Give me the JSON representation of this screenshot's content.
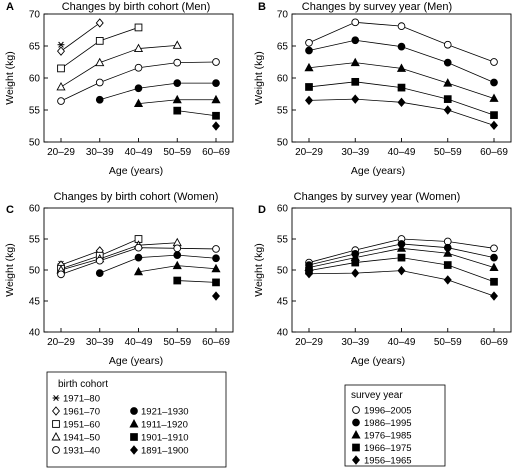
{
  "x_ticks": [
    "20–29",
    "30–39",
    "40–49",
    "50–59",
    "60–69"
  ],
  "chart_data": [
    {
      "panel": "A",
      "type": "line",
      "title": "Changes by birth cohort (Men)",
      "xlabel": "Age (years)",
      "ylabel": "Weight (kg)",
      "categories": [
        "20–29",
        "30–39",
        "40–49",
        "50–59",
        "60–69"
      ],
      "ylim": [
        50,
        70
      ],
      "yticks": [
        50,
        55,
        60,
        65,
        70
      ],
      "connect_lines": true,
      "series": [
        {
          "name": "1971–80",
          "marker": "asterisk",
          "values": [
            65.2,
            null,
            null,
            null,
            null
          ]
        },
        {
          "name": "1961–70",
          "marker": "diamond-open",
          "values": [
            64.2,
            68.6,
            null,
            null,
            null
          ]
        },
        {
          "name": "1951–60",
          "marker": "square-open",
          "values": [
            61.5,
            65.8,
            67.9,
            null,
            null
          ]
        },
        {
          "name": "1941–50",
          "marker": "triangle-open",
          "values": [
            58.6,
            62.4,
            64.6,
            65.1,
            null
          ]
        },
        {
          "name": "1931–40",
          "marker": "circle-open",
          "values": [
            56.4,
            59.3,
            61.6,
            62.4,
            62.5
          ]
        },
        {
          "name": "1921–1930",
          "marker": "circle-filled",
          "values": [
            null,
            56.6,
            58.4,
            59.2,
            59.2
          ]
        },
        {
          "name": "1911–1920",
          "marker": "triangle-filled",
          "values": [
            null,
            null,
            56.0,
            56.6,
            56.6
          ]
        },
        {
          "name": "1901–1910",
          "marker": "square-filled",
          "values": [
            null,
            null,
            null,
            54.9,
            54.1
          ]
        },
        {
          "name": "1891–1900",
          "marker": "diamond-filled",
          "values": [
            null,
            null,
            null,
            null,
            52.5
          ]
        }
      ]
    },
    {
      "panel": "B",
      "type": "line",
      "title": "Changes by survey year (Men)",
      "xlabel": "Age (years)",
      "ylabel": "Weight (kg)",
      "categories": [
        "20–29",
        "30–39",
        "40–49",
        "50–59",
        "60–69"
      ],
      "ylim": [
        50,
        70
      ],
      "yticks": [
        50,
        55,
        60,
        65,
        70
      ],
      "connect_lines": true,
      "series": [
        {
          "name": "1996–2005",
          "marker": "circle-open",
          "values": [
            65.5,
            68.7,
            68.1,
            65.2,
            62.5
          ]
        },
        {
          "name": "1986–1995",
          "marker": "circle-filled",
          "values": [
            64.3,
            65.9,
            64.9,
            62.4,
            59.3
          ]
        },
        {
          "name": "1976–1985",
          "marker": "triangle-filled",
          "values": [
            61.6,
            62.4,
            61.5,
            59.2,
            56.8
          ]
        },
        {
          "name": "1966–1975",
          "marker": "square-filled",
          "values": [
            58.6,
            59.4,
            58.5,
            56.7,
            54.2
          ]
        },
        {
          "name": "1956–1965",
          "marker": "diamond-filled",
          "values": [
            56.5,
            56.7,
            56.2,
            55.0,
            52.6
          ]
        }
      ]
    },
    {
      "panel": "C",
      "type": "line",
      "title": "Changes by birth cohort (Women)",
      "xlabel": "Age (years)",
      "ylabel": "Weight (kg)",
      "categories": [
        "20–29",
        "30–39",
        "40–49",
        "50–59",
        "60–69"
      ],
      "ylim": [
        40,
        60
      ],
      "yticks": [
        40,
        45,
        50,
        55,
        60
      ],
      "connect_lines": true,
      "series": [
        {
          "name": "1971–80",
          "marker": "asterisk",
          "values": [
            51.0,
            null,
            null,
            null,
            null
          ]
        },
        {
          "name": "1961–70",
          "marker": "diamond-open",
          "values": [
            50.8,
            53.1,
            null,
            null,
            null
          ]
        },
        {
          "name": "1951–60",
          "marker": "square-open",
          "values": [
            50.2,
            52.3,
            55.0,
            null,
            null
          ]
        },
        {
          "name": "1941–50",
          "marker": "triangle-open",
          "values": [
            50.0,
            51.8,
            54.0,
            54.4,
            null
          ]
        },
        {
          "name": "1931–40",
          "marker": "circle-open",
          "values": [
            49.3,
            51.5,
            53.6,
            53.5,
            53.4
          ]
        },
        {
          "name": "1921–1930",
          "marker": "circle-filled",
          "values": [
            null,
            49.5,
            52.0,
            52.4,
            51.9
          ]
        },
        {
          "name": "1911–1920",
          "marker": "triangle-filled",
          "values": [
            null,
            null,
            49.7,
            50.7,
            50.2
          ]
        },
        {
          "name": "1901–1910",
          "marker": "square-filled",
          "values": [
            null,
            null,
            null,
            48.3,
            48.0
          ]
        },
        {
          "name": "1891–1900",
          "marker": "diamond-filled",
          "values": [
            null,
            null,
            null,
            null,
            45.8
          ]
        }
      ]
    },
    {
      "panel": "D",
      "type": "line",
      "title": "Changes by survey year (Women)",
      "xlabel": "Age (years)",
      "ylabel": "Weight (kg)",
      "categories": [
        "20–29",
        "30–39",
        "40–49",
        "50–59",
        "60–69"
      ],
      "ylim": [
        40,
        60
      ],
      "yticks": [
        40,
        45,
        50,
        55,
        60
      ],
      "connect_lines": true,
      "series": [
        {
          "name": "1996–2005",
          "marker": "circle-open",
          "values": [
            51.2,
            53.2,
            55.0,
            54.6,
            53.5
          ]
        },
        {
          "name": "1986–1995",
          "marker": "circle-filled",
          "values": [
            50.8,
            52.6,
            54.2,
            53.6,
            52.0
          ]
        },
        {
          "name": "1976–1985",
          "marker": "triangle-filled",
          "values": [
            50.4,
            52.0,
            53.5,
            52.7,
            50.4
          ]
        },
        {
          "name": "1966–1975",
          "marker": "square-filled",
          "values": [
            49.9,
            51.2,
            52.0,
            50.8,
            48.1
          ]
        },
        {
          "name": "1956–1965",
          "marker": "diamond-filled",
          "values": [
            49.4,
            49.5,
            49.9,
            48.4,
            45.8
          ]
        }
      ]
    }
  ],
  "legend_cohort": {
    "title": "birth cohort",
    "entries": [
      {
        "label": "1971–80",
        "marker": "asterisk"
      },
      {
        "label": "1961–70",
        "marker": "diamond-open"
      },
      {
        "label": "1951–60",
        "marker": "square-open"
      },
      {
        "label": "1941–50",
        "marker": "triangle-open"
      },
      {
        "label": "1931–40",
        "marker": "circle-open"
      },
      {
        "label": "1921–1930",
        "marker": "circle-filled"
      },
      {
        "label": "1911–1920",
        "marker": "triangle-filled"
      },
      {
        "label": "1901–1910",
        "marker": "square-filled"
      },
      {
        "label": "1891–1900",
        "marker": "diamond-filled"
      }
    ]
  },
  "legend_survey": {
    "title": "survey year",
    "entries": [
      {
        "label": "1996–2005",
        "marker": "circle-open"
      },
      {
        "label": "1986–1995",
        "marker": "circle-filled"
      },
      {
        "label": "1976–1985",
        "marker": "triangle-filled"
      },
      {
        "label": "1966–1975",
        "marker": "square-filled"
      },
      {
        "label": "1956–1965",
        "marker": "diamond-filled"
      }
    ]
  }
}
